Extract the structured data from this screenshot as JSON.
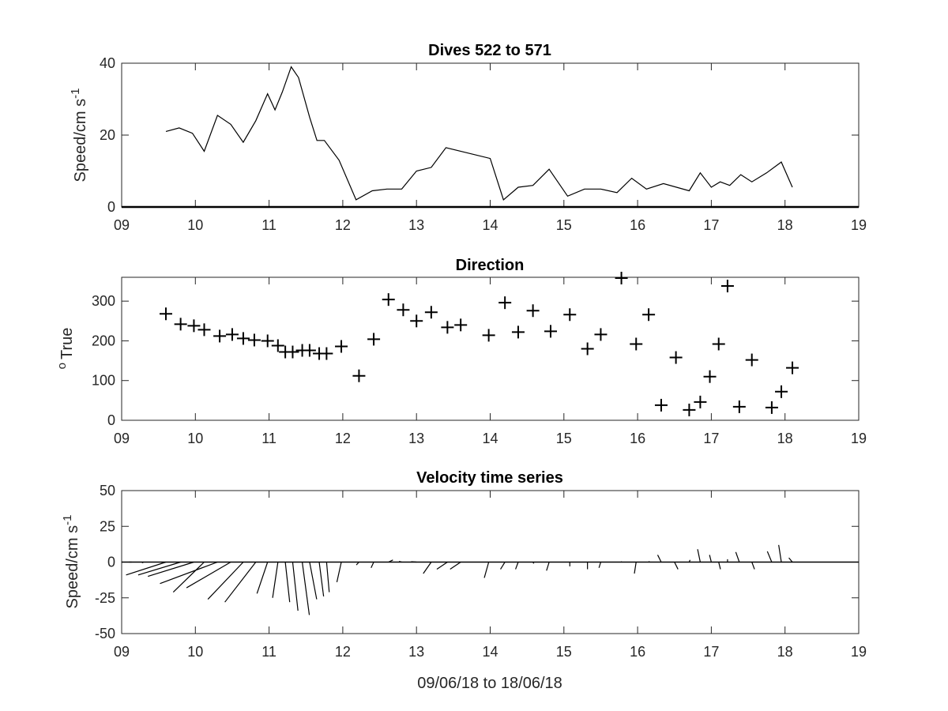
{
  "chart_data": [
    {
      "type": "line",
      "title": "Dives 522 to 571",
      "ylabel": "Speed/cm s",
      "ylabel_sup": "-1",
      "xlim": [
        9,
        19
      ],
      "ylim": [
        0,
        40
      ],
      "xticks": [
        9,
        10,
        11,
        12,
        13,
        14,
        15,
        16,
        17,
        18,
        19
      ],
      "xticklabels": [
        "09",
        "10",
        "11",
        "12",
        "13",
        "14",
        "15",
        "16",
        "17",
        "18",
        "19"
      ],
      "yticks": [
        0,
        20,
        40
      ],
      "yticklabels": [
        "0",
        "20",
        "40"
      ],
      "baseline": 0,
      "x": [
        9.6,
        9.78,
        9.96,
        10.12,
        10.3,
        10.48,
        10.65,
        10.82,
        10.98,
        11.08,
        11.18,
        11.3,
        11.4,
        11.55,
        11.65,
        11.75,
        11.95,
        12.18,
        12.4,
        12.6,
        12.8,
        13.0,
        13.2,
        13.4,
        14.0,
        14.18,
        14.38,
        14.58,
        14.8,
        15.05,
        15.28,
        15.5,
        15.72,
        15.92,
        16.12,
        16.35,
        16.7,
        16.85,
        17.0,
        17.12,
        17.25,
        17.4,
        17.55,
        17.75,
        17.95,
        18.1
      ],
      "y": [
        21,
        22,
        20.5,
        15.5,
        25.5,
        23,
        18,
        24,
        31.5,
        27,
        32,
        39,
        36,
        25,
        18.5,
        18.5,
        13,
        2,
        4.5,
        5,
        5,
        10,
        11,
        16.5,
        13.5,
        2,
        5.5,
        6,
        10.5,
        3,
        5,
        5,
        4,
        8,
        5,
        6.5,
        4.5,
        9.5,
        5.5,
        7,
        6,
        9,
        7,
        9.5,
        12.5,
        5.5
      ]
    },
    {
      "type": "scatter",
      "title": "Direction",
      "ylabel": "True",
      "ylabel_sup": "o",
      "marker": "+",
      "xlim": [
        9,
        19
      ],
      "ylim": [
        0,
        360
      ],
      "xticks": [
        9,
        10,
        11,
        12,
        13,
        14,
        15,
        16,
        17,
        18,
        19
      ],
      "xticklabels": [
        "09",
        "10",
        "11",
        "12",
        "13",
        "14",
        "15",
        "16",
        "17",
        "18",
        "19"
      ],
      "yticks": [
        0,
        100,
        200,
        300
      ],
      "yticklabels": [
        "0",
        "100",
        "200",
        "300"
      ],
      "x": [
        9.6,
        9.8,
        9.98,
        10.12,
        10.33,
        10.5,
        10.65,
        10.8,
        10.98,
        11.12,
        11.22,
        11.32,
        11.45,
        11.55,
        11.68,
        11.78,
        11.98,
        12.22,
        12.42,
        12.62,
        12.82,
        13.0,
        13.2,
        13.42,
        13.6,
        13.98,
        14.2,
        14.38,
        14.58,
        14.82,
        15.08,
        15.32,
        15.5,
        15.78,
        15.98,
        16.15,
        16.32,
        16.52,
        16.7,
        16.85,
        16.98,
        17.1,
        17.22,
        17.38,
        17.55,
        17.82,
        17.95,
        18.1
      ],
      "y": [
        268,
        242,
        238,
        228,
        212,
        216,
        206,
        202,
        200,
        188,
        172,
        172,
        176,
        176,
        168,
        168,
        186,
        112,
        204,
        304,
        278,
        250,
        272,
        234,
        240,
        214,
        296,
        222,
        276,
        224,
        266,
        180,
        216,
        358,
        192,
        266,
        38,
        158,
        26,
        46,
        110,
        192,
        338,
        34,
        152,
        32,
        72,
        132
      ]
    },
    {
      "type": "quiver",
      "title": "Velocity time series",
      "ylabel": "Speed/cm s",
      "ylabel_sup": "-1",
      "xlabel": "09/06/18 to 18/06/18",
      "xlim": [
        9,
        19
      ],
      "ylim": [
        -50,
        50
      ],
      "xticks": [
        9,
        10,
        11,
        12,
        13,
        14,
        15,
        16,
        17,
        18,
        19
      ],
      "xticklabels": [
        "09",
        "10",
        "11",
        "12",
        "13",
        "14",
        "15",
        "16",
        "17",
        "18",
        "19"
      ],
      "yticks": [
        -50,
        -25,
        0,
        25,
        50
      ],
      "yticklabels": [
        "-50",
        "-25",
        "0",
        "25",
        "50"
      ],
      "baseline": 0,
      "x": [
        9.1,
        9.3,
        9.6,
        9.8,
        9.98,
        10.12,
        10.3,
        10.48,
        10.65,
        10.82,
        10.98,
        11.12,
        11.22,
        11.32,
        11.45,
        11.55,
        11.68,
        11.78,
        11.98,
        12.22,
        12.42,
        12.62,
        12.8,
        13.0,
        13.2,
        13.42,
        13.6,
        13.98,
        14.2,
        14.38,
        14.58,
        14.8,
        15.08,
        15.32,
        15.5,
        15.78,
        15.98,
        16.15,
        16.32,
        16.5,
        16.7,
        16.85,
        17.0,
        17.1,
        17.22,
        17.38,
        17.55,
        17.82,
        17.95,
        18.1
      ],
      "u": [
        0.3,
        -0.2,
        -4.5,
        -4.8,
        -5.2,
        -3.5,
        -6.5,
        -5.0,
        -4.0,
        -3.5,
        -1.2,
        -0.6,
        0.5,
        0.6,
        0.8,
        0.8,
        0.5,
        0.3,
        -0.5,
        -0.3,
        -0.3,
        0.5,
        -0.3,
        -0.6,
        -0.9,
        -1.2,
        -1.2,
        -0.5,
        -0.5,
        -0.3,
        0.1,
        -0.3,
        0.0,
        0.0,
        -0.2,
        0.0,
        -0.2,
        0.1,
        -0.4,
        0.4,
        0.1,
        -0.3,
        -0.2,
        0.2,
        0.0,
        -0.4,
        0.3,
        -0.5,
        -0.3,
        -0.4
      ],
      "v": [
        0.0,
        -0.5,
        -9,
        -9,
        -10,
        -21,
        -15,
        -18,
        -26,
        -28,
        -22,
        -25,
        -28,
        -34,
        -37,
        -26,
        -24,
        -21,
        -14,
        -2,
        -4,
        1.5,
        0.5,
        0.3,
        -8,
        -5,
        -5,
        -11,
        -5,
        -5,
        -1,
        -6,
        -3,
        -5,
        -4,
        0.5,
        -8,
        0.5,
        5,
        -5,
        1.5,
        9,
        5,
        -5,
        2,
        7,
        -5,
        7.5,
        12,
        3
      ]
    }
  ]
}
